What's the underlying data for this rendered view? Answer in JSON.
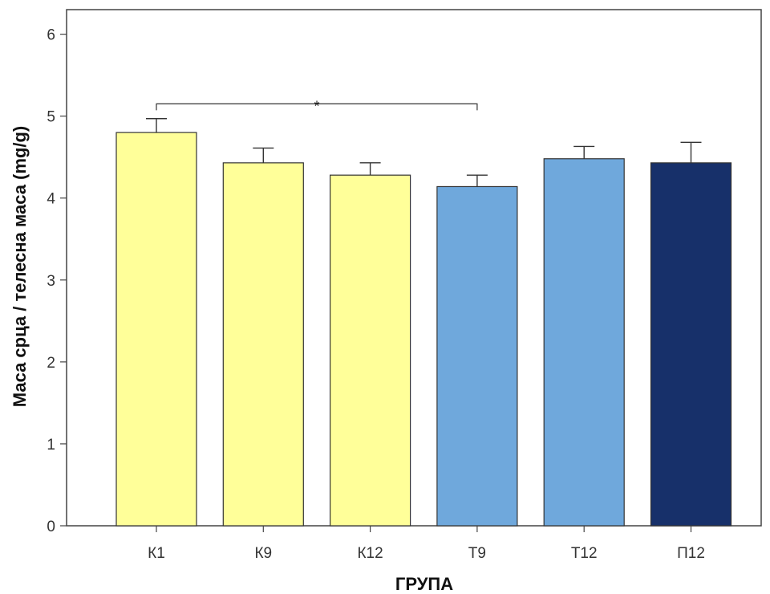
{
  "chart_data": {
    "type": "bar",
    "title": "",
    "xlabel": "ГРУПА",
    "ylabel": "Маса срца /  телесна маса (mg/g)",
    "ylim": [
      0,
      6.3
    ],
    "yticks": [
      0,
      1,
      2,
      3,
      4,
      5,
      6
    ],
    "categories": [
      "К1",
      "К9",
      "К12",
      "Т9",
      "Т12",
      "П12"
    ],
    "values": [
      4.8,
      4.43,
      4.28,
      4.14,
      4.48,
      4.43
    ],
    "error_upper": [
      4.97,
      4.61,
      4.43,
      4.28,
      4.63,
      4.68
    ],
    "colors": [
      "#ffff99",
      "#ffff99",
      "#ffff99",
      "#6fa8dc",
      "#6fa8dc",
      "#17306a"
    ],
    "grid": false,
    "legend": "none",
    "annotations": [
      {
        "label": "*",
        "from": "К1",
        "to": "Т9",
        "y": 5.15
      }
    ]
  }
}
